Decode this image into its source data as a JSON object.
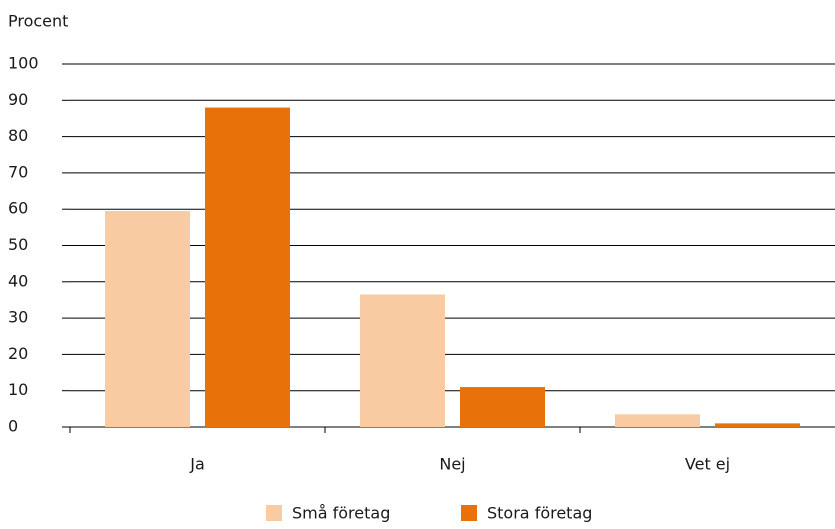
{
  "chart_data": {
    "type": "bar",
    "y_axis_label": "Procent",
    "categories": [
      "Ja",
      "Nej",
      "Vet ej"
    ],
    "series": [
      {
        "name": "Små företag",
        "color": "#f9cba2",
        "values": [
          59.5,
          36.5,
          3.5
        ]
      },
      {
        "name": "Stora företag",
        "color": "#e8710a",
        "values": [
          88,
          11,
          1
        ]
      }
    ],
    "ylim": [
      0,
      100
    ],
    "yticks": [
      0,
      10,
      20,
      30,
      40,
      50,
      60,
      70,
      80,
      90,
      100
    ],
    "grid": true,
    "legend": "bottom"
  }
}
